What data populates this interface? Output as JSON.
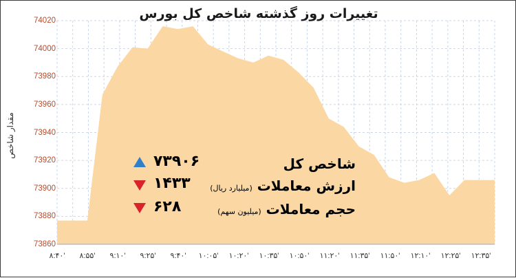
{
  "colors": {
    "fill": "#fbd8a3",
    "grid": "#c9d6e8",
    "tick_y": "#b94a2a",
    "up": "#2f80c8",
    "down": "#d8232a"
  },
  "chart_data": {
    "type": "area",
    "title": "تغییرات روز گذشته شاخص کل بورس",
    "ylabel": "مقدار شاخص",
    "xlabel": "",
    "ylim": [
      73860,
      74020
    ],
    "yticks": [
      74020,
      74000,
      73980,
      73960,
      73940,
      73920,
      73900,
      73880,
      73860
    ],
    "xticks": [
      "۸:۴۰'",
      "۸:۵۵'",
      "۹:۱۰'",
      "۹:۲۵'",
      "۹:۴۰'",
      "۱۰:۰۵'",
      "۱۰:۲۰'",
      "۱۰:۳۵'",
      "۱۰:۵۰'",
      "۱۱:۲۰'",
      "۱۱:۳۵'",
      "۱۱:۵۰'",
      "۱۲:۱۰'",
      "۱۲:۲۵'",
      "۱۲:۳۵'"
    ],
    "grid": true,
    "series": [
      {
        "values": [
          73877,
          73877,
          73877,
          73967,
          73987,
          74001,
          74000,
          74016,
          74014,
          74016,
          74003,
          73998,
          73993,
          73990,
          73995,
          73992,
          73983,
          73972,
          73950,
          73944,
          73930,
          73924,
          73908,
          73904,
          73906,
          73911,
          73895,
          73906,
          73906,
          73906
        ]
      }
    ]
  },
  "stats": [
    {
      "label": "شاخص کل",
      "note": "",
      "value": "۷۳۹۰۶",
      "direction": "up"
    },
    {
      "label": "ارزش معاملات",
      "note": "(میلیارد ریال)",
      "value": "۱۴۳۳",
      "direction": "down"
    },
    {
      "label": "حجم معاملات",
      "note": "(میلیون سهم)",
      "value": "۶۲۸",
      "direction": "down"
    }
  ]
}
